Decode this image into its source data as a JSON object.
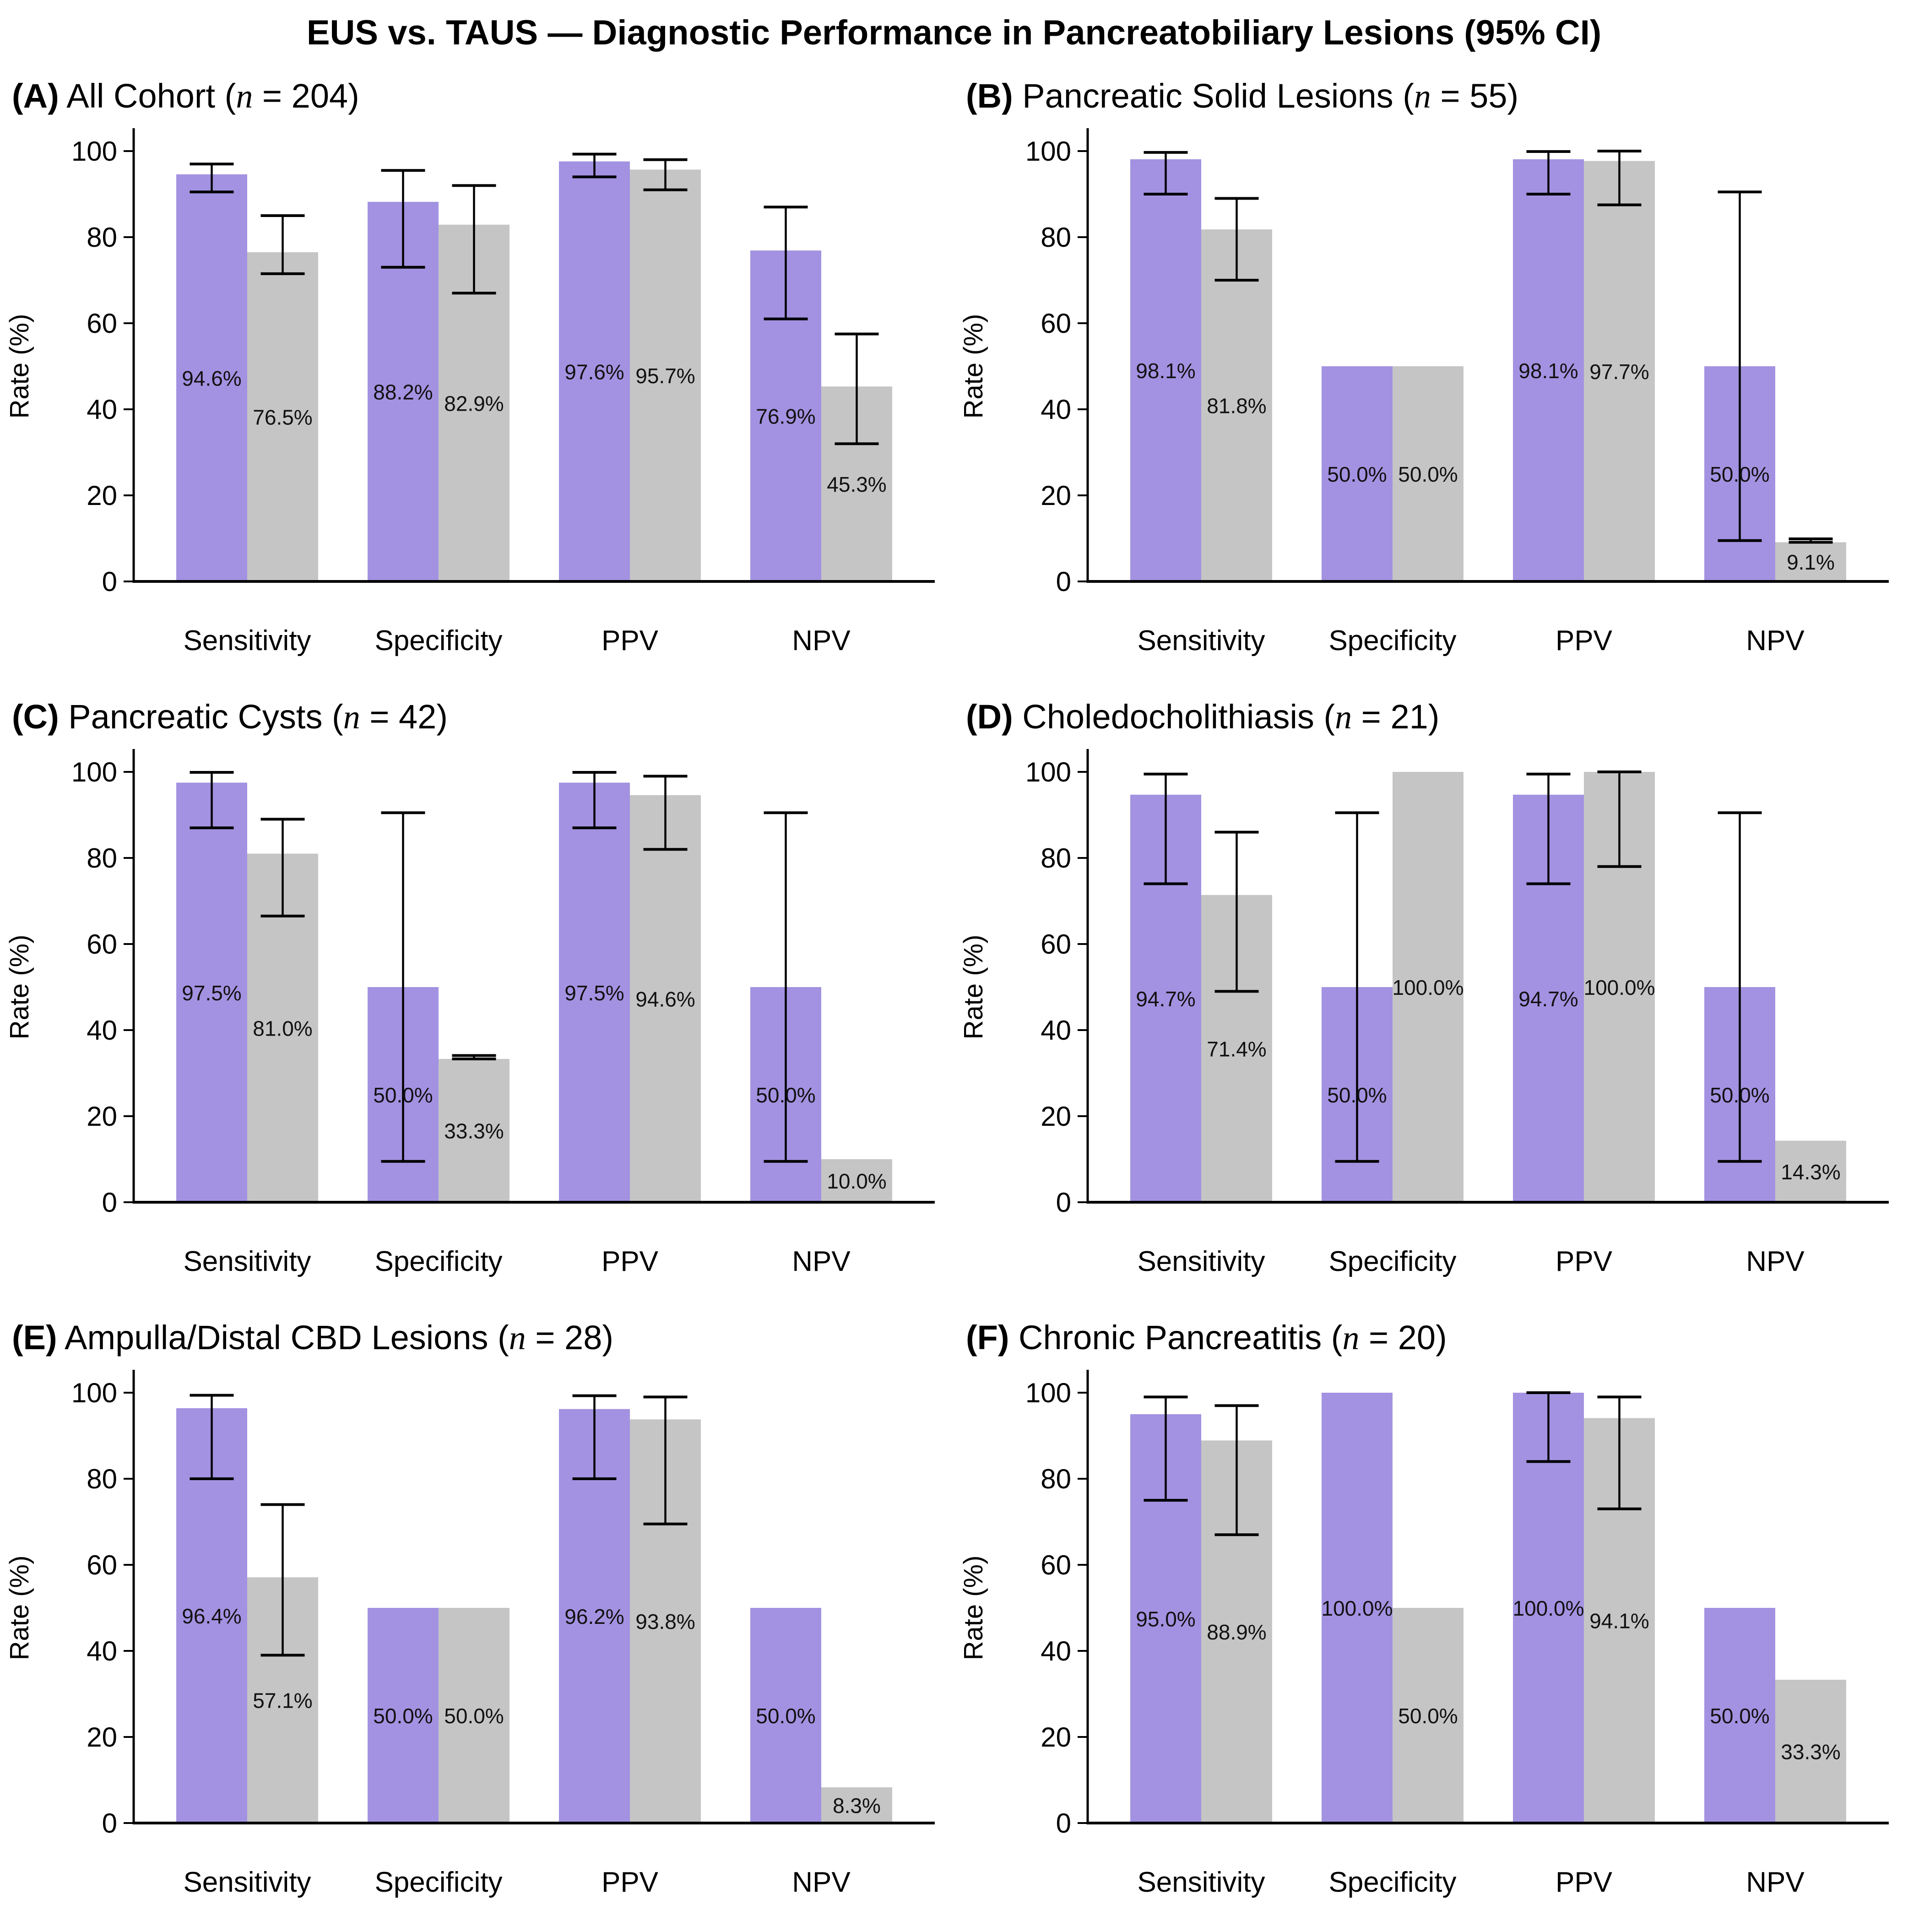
{
  "title": "EUS vs. TAUS — Diagnostic Performance in Pancreatobiliary Lesions (95% CI)",
  "ylabel": "Rate (%)",
  "yticks": [
    0,
    20,
    40,
    60,
    80,
    100
  ],
  "categories": [
    "Sensitivity",
    "Specificity",
    "PPV",
    "NPV"
  ],
  "series_names": [
    "EUS",
    "TAUS"
  ],
  "colors": {
    "EUS": "#a392e1",
    "TAUS": "#c5c5c5",
    "error_bar": "#000000",
    "axis": "#000000"
  },
  "chart_data": [
    {
      "type": "bar",
      "panel_letter": "A",
      "panel_name": "All Cohort",
      "n": 204,
      "title": "(A) All Cohort (n = 204)",
      "ylabel": "Rate (%)",
      "ylim": [
        0,
        100
      ],
      "categories": [
        "Sensitivity",
        "Specificity",
        "PPV",
        "NPV"
      ],
      "series": [
        {
          "name": "EUS",
          "values": [
            94.6,
            88.2,
            97.6,
            76.9
          ],
          "labels": [
            "94.6%",
            "88.2%",
            "97.6%",
            "76.9%"
          ],
          "ci95": [
            [
              90.5,
              97.0
            ],
            [
              73.0,
              95.5
            ],
            [
              94.0,
              99.3
            ],
            [
              61.0,
              87.0
            ]
          ]
        },
        {
          "name": "TAUS",
          "values": [
            76.5,
            82.9,
            95.7,
            45.3
          ],
          "labels": [
            "76.5%",
            "82.9%",
            "95.7%",
            "45.3%"
          ],
          "ci95": [
            [
              71.5,
              85.0
            ],
            [
              67.0,
              92.0
            ],
            [
              91.0,
              98.0
            ],
            [
              32.0,
              57.5
            ]
          ]
        }
      ]
    },
    {
      "type": "bar",
      "panel_letter": "B",
      "panel_name": "Pancreatic Solid Lesions",
      "n": 55,
      "title": "(B) Pancreatic Solid Lesions (n = 55)",
      "ylabel": "Rate (%)",
      "ylim": [
        0,
        100
      ],
      "categories": [
        "Sensitivity",
        "Specificity",
        "PPV",
        "NPV"
      ],
      "series": [
        {
          "name": "EUS",
          "values": [
            98.1,
            50.0,
            98.1,
            50.0
          ],
          "labels": [
            "98.1%",
            "50.0%",
            "98.1%",
            "50.0%"
          ],
          "ci95": [
            [
              90.0,
              99.7
            ],
            null,
            [
              90.0,
              99.9
            ],
            [
              9.5,
              90.5
            ]
          ]
        },
        {
          "name": "TAUS",
          "values": [
            81.8,
            50.0,
            97.7,
            9.1
          ],
          "labels": [
            "81.8%",
            "50.0%",
            "97.7%",
            "9.1%"
          ],
          "ci95": [
            [
              70.0,
              89.0
            ],
            null,
            [
              87.5,
              100.0
            ],
            [
              9.1,
              9.9
            ]
          ]
        }
      ]
    },
    {
      "type": "bar",
      "panel_letter": "C",
      "panel_name": "Pancreatic Cysts",
      "n": 42,
      "title": "(C) Pancreatic Cysts (n = 42)",
      "ylabel": "Rate (%)",
      "ylim": [
        0,
        100
      ],
      "categories": [
        "Sensitivity",
        "Specificity",
        "PPV",
        "NPV"
      ],
      "series": [
        {
          "name": "EUS",
          "values": [
            97.5,
            50.0,
            97.5,
            50.0
          ],
          "labels": [
            "97.5%",
            "50.0%",
            "97.5%",
            "50.0%"
          ],
          "ci95": [
            [
              87.0,
              99.9
            ],
            [
              9.5,
              90.5
            ],
            [
              87.0,
              99.9
            ],
            [
              9.5,
              90.5
            ]
          ]
        },
        {
          "name": "TAUS",
          "values": [
            81.0,
            33.3,
            94.6,
            10.0
          ],
          "labels": [
            "81.0%",
            "33.3%",
            "94.6%",
            "10.0%"
          ],
          "ci95": [
            [
              66.5,
              89.0
            ],
            [
              33.3,
              34.1
            ],
            [
              82.0,
              99.0
            ],
            null
          ]
        }
      ]
    },
    {
      "type": "bar",
      "panel_letter": "D",
      "panel_name": "Choledocholithiasis",
      "n": 21,
      "title": "(D) Choledocholithiasis (n = 21)",
      "ylabel": "Rate (%)",
      "ylim": [
        0,
        100
      ],
      "categories": [
        "Sensitivity",
        "Specificity",
        "PPV",
        "NPV"
      ],
      "series": [
        {
          "name": "EUS",
          "values": [
            94.7,
            50.0,
            94.7,
            50.0
          ],
          "labels": [
            "94.7%",
            "50.0%",
            "94.7%",
            "50.0%"
          ],
          "ci95": [
            [
              74.0,
              99.5
            ],
            [
              9.5,
              90.5
            ],
            [
              74.0,
              99.5
            ],
            [
              9.5,
              90.5
            ]
          ]
        },
        {
          "name": "TAUS",
          "values": [
            71.4,
            100.0,
            100.0,
            14.3
          ],
          "labels": [
            "71.4%",
            "100.0%",
            "100.0%",
            "14.3%"
          ],
          "ci95": [
            [
              49.0,
              86.0
            ],
            null,
            [
              78.0,
              100.0
            ],
            null
          ]
        }
      ]
    },
    {
      "type": "bar",
      "panel_letter": "E",
      "panel_name": "Ampulla/Distal CBD Lesions",
      "n": 28,
      "title": "(E) Ampulla/Distal CBD Lesions (n = 28)",
      "ylabel": "Rate (%)",
      "ylim": [
        0,
        100
      ],
      "categories": [
        "Sensitivity",
        "Specificity",
        "PPV",
        "NPV"
      ],
      "series": [
        {
          "name": "EUS",
          "values": [
            96.4,
            50.0,
            96.2,
            50.0
          ],
          "labels": [
            "96.4%",
            "50.0%",
            "96.2%",
            "50.0%"
          ],
          "ci95": [
            [
              80.0,
              99.4
            ],
            null,
            [
              80.0,
              99.3
            ],
            null
          ]
        },
        {
          "name": "TAUS",
          "values": [
            57.1,
            50.0,
            93.8,
            8.3
          ],
          "labels": [
            "57.1%",
            "50.0%",
            "93.8%",
            "8.3%"
          ],
          "ci95": [
            [
              39.0,
              74.0
            ],
            null,
            [
              69.5,
              99.0
            ],
            null
          ]
        }
      ]
    },
    {
      "type": "bar",
      "panel_letter": "F",
      "panel_name": "Chronic Pancreatitis",
      "n": 20,
      "title": "(F) Chronic Pancreatitis (n = 20)",
      "ylabel": "Rate (%)",
      "ylim": [
        0,
        100
      ],
      "categories": [
        "Sensitivity",
        "Specificity",
        "PPV",
        "NPV"
      ],
      "series": [
        {
          "name": "EUS",
          "values": [
            95.0,
            100.0,
            100.0,
            50.0
          ],
          "labels": [
            "95.0%",
            "100.0%",
            "100.0%",
            "50.0%"
          ],
          "ci95": [
            [
              75.0,
              99.0
            ],
            null,
            [
              84.0,
              100.0
            ],
            null
          ]
        },
        {
          "name": "TAUS",
          "values": [
            88.9,
            50.0,
            94.1,
            33.3
          ],
          "labels": [
            "88.9%",
            "50.0%",
            "94.1%",
            "33.3%"
          ],
          "ci95": [
            [
              67.0,
              97.0
            ],
            null,
            [
              73.0,
              99.0
            ],
            null
          ]
        }
      ]
    }
  ]
}
